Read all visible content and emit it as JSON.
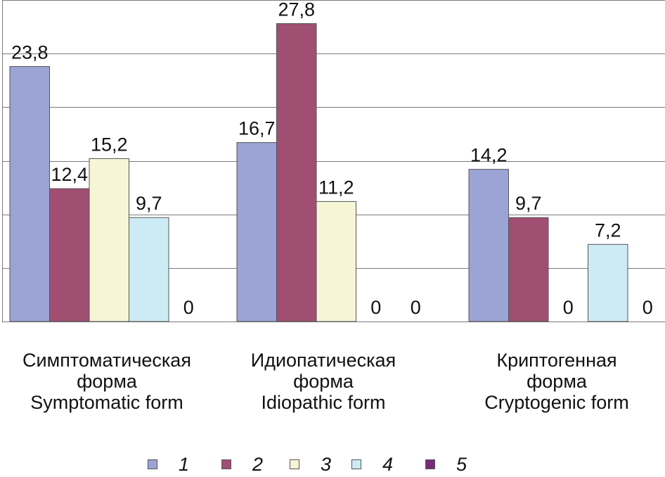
{
  "chart_data": {
    "type": "bar",
    "categories": [
      [
        "Симптоматическая",
        "форма",
        "Symptomatic form"
      ],
      [
        "Идиопатическая",
        "форма",
        "Idiopathic form"
      ],
      [
        "Криптогенная",
        "форма",
        "Cryptogenic form"
      ]
    ],
    "series": [
      {
        "name": "1",
        "color": "#9ba4d4",
        "values": [
          23.8,
          16.7,
          14.2
        ],
        "labels": [
          "23,8",
          "16,7",
          "14,2"
        ]
      },
      {
        "name": "2",
        "color": "#a04f73",
        "values": [
          12.4,
          27.8,
          9.7
        ],
        "labels": [
          "12,4",
          "27,8",
          "9,7"
        ]
      },
      {
        "name": "3",
        "color": "#f6f5d6",
        "values": [
          15.2,
          11.2,
          0
        ],
        "labels": [
          "15,2",
          "11,2",
          "0"
        ]
      },
      {
        "name": "4",
        "color": "#cdebf4",
        "values": [
          9.7,
          0,
          7.2
        ],
        "labels": [
          "9,7",
          "0",
          "7,2"
        ]
      },
      {
        "name": "5",
        "color": "#7a2a78",
        "values": [
          0,
          0,
          0
        ],
        "labels": [
          "0",
          "0",
          "0"
        ]
      }
    ],
    "ylim": [
      0,
      30
    ],
    "grid": true,
    "legend_position": "bottom"
  }
}
